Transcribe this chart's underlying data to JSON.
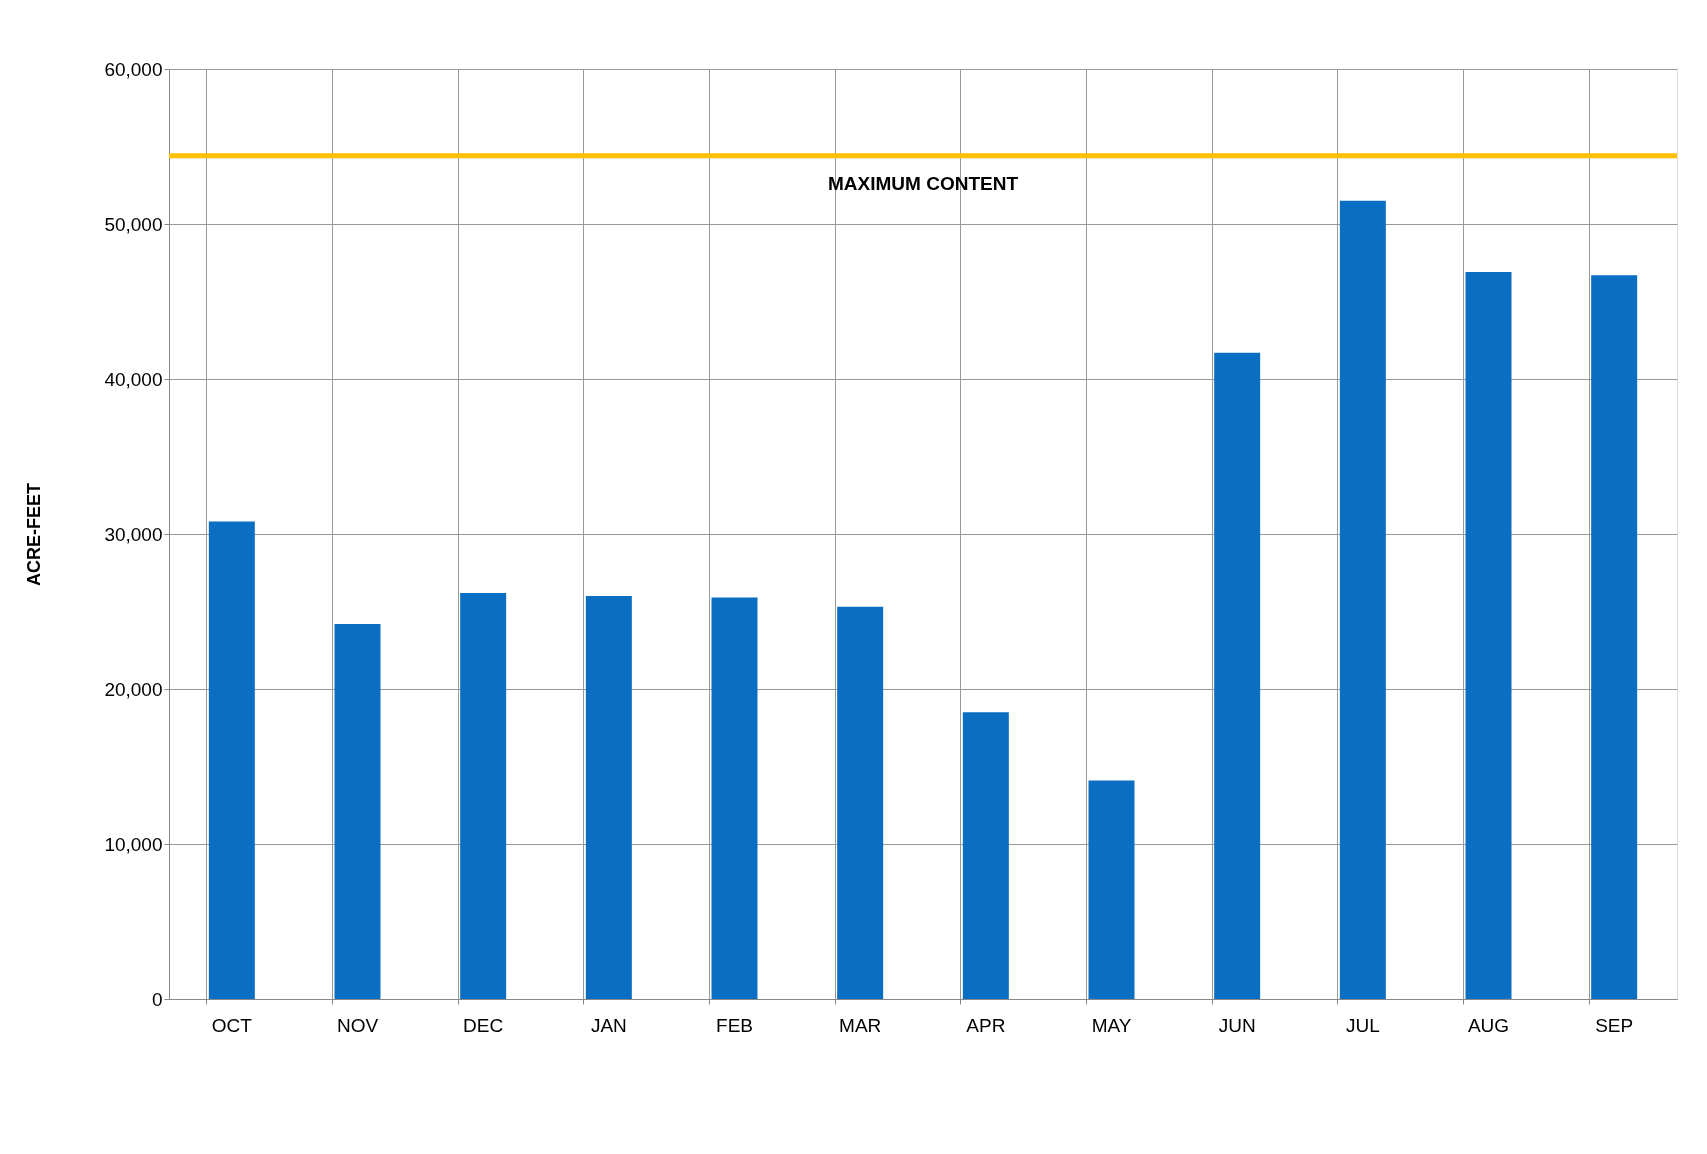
{
  "chart_data": {
    "type": "bar",
    "ylabel": "ACRE-FEET",
    "categories": [
      "OCT",
      "NOV",
      "DEC",
      "JAN",
      "FEB",
      "MAR",
      "APR",
      "MAY",
      "JUN",
      "JUL",
      "AUG",
      "SEP"
    ],
    "values": [
      30800,
      24200,
      26200,
      26000,
      25900,
      25300,
      18500,
      14100,
      41700,
      51500,
      46900,
      46700
    ],
    "color": "#0a6fc2",
    "ylim": [
      0,
      60000
    ],
    "yticks": [
      {
        "value": 0,
        "label": "0"
      },
      {
        "value": 10000,
        "label": "10,000"
      },
      {
        "value": 20000,
        "label": "20,000"
      },
      {
        "value": 30000,
        "label": "30,000"
      },
      {
        "value": 40000,
        "label": "40,000"
      },
      {
        "value": 50000,
        "label": "50,000"
      },
      {
        "value": 60000,
        "label": "60,000"
      }
    ],
    "ref_lines": [
      {
        "axis": "y",
        "value": 54400,
        "label": "MAXIMUM CONTENT",
        "color": "#ffc000"
      }
    ],
    "grid": true
  }
}
